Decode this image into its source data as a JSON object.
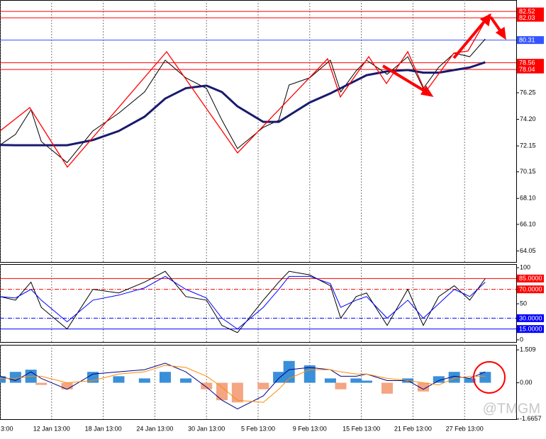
{
  "chart_data": [
    {
      "type": "line",
      "x": [
        0,
        3,
        6,
        8,
        13,
        18,
        23,
        28,
        32,
        36,
        40,
        43,
        46,
        51,
        54,
        56,
        60,
        64,
        66,
        69,
        71,
        75,
        79,
        82,
        85,
        88,
        91,
        94
      ],
      "xlim": [
        0,
        100
      ],
      "xticks": [
        {
          "value": 0,
          "label": "3:00"
        },
        {
          "value": 10,
          "label": "12 Jan 13:00"
        },
        {
          "value": 20,
          "label": "18 Jan 13:00"
        },
        {
          "value": 30,
          "label": "24 Jan 13:00"
        },
        {
          "value": 40,
          "label": "30 Jan 13:00"
        },
        {
          "value": 50,
          "label": "5 Feb 13:00"
        },
        {
          "value": 60,
          "label": "9 Feb 13:00"
        },
        {
          "value": 70,
          "label": "15 Feb 13:00"
        },
        {
          "value": 80,
          "label": "21 Feb 13:00"
        },
        {
          "value": 90,
          "label": "27 Feb 13:00"
        }
      ],
      "ylim": [
        63.2,
        83.4
      ],
      "yticks": [
        76.25,
        {
          "value": 74.2,
          "label": "74.20"
        },
        72.15,
        70.15,
        {
          "value": 68.1,
          "label": "68.10"
        },
        {
          "value": 66.1,
          "label": "66.10"
        },
        64.05
      ],
      "hlines": [
        {
          "value": 82.52,
          "color": "#ff0000"
        },
        {
          "value": 82.03,
          "color": "#ff0000"
        },
        {
          "value": 80.31,
          "color": "#3355ff"
        },
        {
          "value": 78.56,
          "color": "#ff0000"
        },
        {
          "value": 78.04,
          "color": "#ff0000"
        }
      ],
      "series": [
        {
          "color": "#000000",
          "values": [
            72.22,
            73.04,
            74.95,
            72.49,
            70.86,
            73.31,
            74.67,
            76.31,
            78.76,
            77.4,
            76.58,
            74.13,
            71.95,
            73.58,
            74.13,
            76.85,
            77.4,
            78.76,
            76.31,
            77.94,
            78.76,
            77.67,
            79.03,
            76.58,
            78.22,
            79.3,
            79.03,
            80.39
          ]
        },
        {
          "color": "#1a1a6e",
          "values": [
            72.22,
            72.2,
            72.2,
            72.2,
            72.2,
            72.6,
            73.3,
            74.4,
            75.8,
            76.6,
            76.8,
            76.3,
            75.2,
            74.0,
            74.0,
            74.5,
            75.5,
            76.2,
            76.6,
            77.2,
            77.6,
            77.9,
            78.0,
            77.8,
            77.8,
            78.0,
            78.2,
            78.6
          ]
        }
      ]
    },
    {
      "type": "line",
      "x": [
        0,
        3,
        6,
        8,
        13,
        18,
        23,
        28,
        32,
        36,
        40,
        43,
        46,
        51,
        54,
        56,
        60,
        64,
        66,
        69,
        71,
        75,
        79,
        82,
        85,
        88,
        91,
        94
      ],
      "xlim": [
        0,
        100
      ],
      "ylim": [
        -3,
        105
      ],
      "yticks": [
        100,
        50,
        0
      ],
      "hlines": [
        {
          "value": 85,
          "label": "85.0000",
          "color": "#ff0000",
          "dash": ""
        },
        {
          "value": 70,
          "label": "70.0000",
          "color": "#ff0000",
          "dash": "6 2 1 2"
        },
        {
          "value": 30,
          "label": "30.0000",
          "color": "#0000ff",
          "dash": "6 2 1 2"
        },
        {
          "value": 15,
          "label": "15.0000",
          "color": "#0000ff",
          "dash": ""
        }
      ],
      "series": [
        {
          "color": "#000000",
          "values": [
            60,
            55,
            80,
            45,
            15,
            70,
            65,
            80,
            95,
            60,
            55,
            20,
            10,
            55,
            80,
            95,
            90,
            75,
            30,
            60,
            65,
            20,
            70,
            20,
            60,
            75,
            55,
            85
          ]
        },
        {
          "color": "#0000ff",
          "values": [
            60,
            58,
            70,
            55,
            25,
            55,
            62,
            72,
            88,
            70,
            58,
            30,
            15,
            45,
            70,
            88,
            88,
            78,
            45,
            55,
            60,
            30,
            55,
            30,
            50,
            70,
            60,
            80
          ]
        }
      ]
    },
    {
      "type": "macd",
      "x": [
        0,
        3,
        6,
        8,
        13,
        18,
        23,
        28,
        32,
        36,
        40,
        43,
        46,
        51,
        54,
        56,
        60,
        64,
        66,
        69,
        71,
        75,
        79,
        82,
        85,
        88,
        91,
        94
      ],
      "xlim": [
        0,
        100
      ],
      "ylim": [
        -1.67,
        1.74
      ],
      "yticks": [
        1.509,
        {
          "value": 0,
          "label": "0.00"
        },
        -1.6657
      ],
      "values": [
        0.3,
        0.5,
        0.6,
        -0.1,
        -0.3,
        0.5,
        0.3,
        0.2,
        0.5,
        0.2,
        -0.3,
        -0.8,
        -0.9,
        -0.3,
        0.5,
        1.0,
        0.8,
        0.2,
        -0.3,
        0.2,
        0.1,
        -0.5,
        0.2,
        -0.4,
        0.3,
        0.5,
        0.2,
        0.5
      ],
      "positive_color": "#3a8fd9",
      "negative_color": "#f4a582",
      "series": [
        {
          "color": "#00008b",
          "values": [
            0.3,
            0.1,
            0.5,
            0.2,
            -0.3,
            0.4,
            0.5,
            0.6,
            0.9,
            0.5,
            -0.2,
            -0.8,
            -1.2,
            -0.6,
            0.2,
            0.6,
            0.7,
            0.6,
            0.3,
            0.3,
            0.4,
            0.1,
            0.1,
            -0.3,
            0.1,
            0.3,
            0.2,
            0.5
          ]
        },
        {
          "color": "#ff8c00",
          "values": [
            0.2,
            0.2,
            0.3,
            0.3,
            0,
            0.1,
            0.4,
            0.5,
            0.8,
            0.7,
            0.3,
            -0.2,
            -0.8,
            -0.9,
            -0.3,
            0.2,
            0.6,
            0.6,
            0.5,
            0.4,
            0.4,
            0.2,
            0.1,
            0,
            -0.1,
            0.2,
            0.3,
            0.3
          ]
        }
      ]
    }
  ],
  "watermark": "@TMGM"
}
